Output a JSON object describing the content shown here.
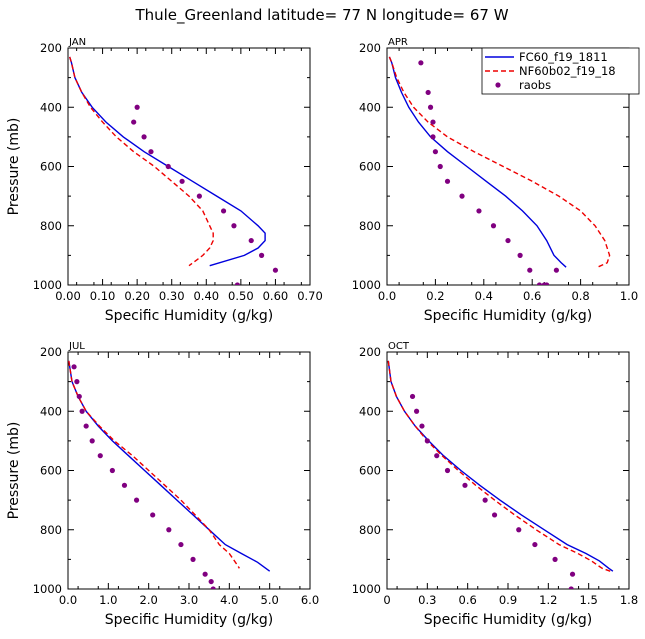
{
  "title": "Thule_Greenland  latitude= 77 N longitude= 67 W",
  "legend": {
    "entries": [
      {
        "name": "FC60_f19_1811",
        "color": "#0000dd",
        "style": "solid"
      },
      {
        "name": "NF60b02_f19_18",
        "color": "#ee0000",
        "style": "dashed"
      },
      {
        "name": "raobs",
        "color": "#800080",
        "style": "dots"
      }
    ]
  },
  "chart_data": [
    {
      "type": "line",
      "panel": "JAN",
      "xlabel": "Specific Humidity (g/kg)",
      "ylabel": "Pressure (mb)",
      "xlim": [
        0,
        0.7
      ],
      "ylim": [
        1000,
        200
      ],
      "xticks": [
        "0.00",
        "0.10",
        "0.20",
        "0.30",
        "0.40",
        "0.50",
        "0.60",
        "0.70"
      ],
      "yticks": [
        "200",
        "400",
        "600",
        "800",
        "1000"
      ],
      "series": [
        {
          "name": "FC60_f19_1811",
          "x": [
            0.005,
            0.01,
            0.02,
            0.04,
            0.07,
            0.11,
            0.16,
            0.22,
            0.29,
            0.36,
            0.43,
            0.5,
            0.55,
            0.57,
            0.57,
            0.55,
            0.51,
            0.41
          ],
          "y": [
            230,
            250,
            300,
            350,
            400,
            450,
            500,
            550,
            600,
            650,
            700,
            750,
            800,
            825,
            850,
            875,
            900,
            935
          ]
        },
        {
          "name": "NF60b02_f19_18",
          "x": [
            0.005,
            0.01,
            0.02,
            0.04,
            0.065,
            0.1,
            0.14,
            0.19,
            0.25,
            0.3,
            0.35,
            0.39,
            0.41,
            0.42,
            0.42,
            0.41,
            0.39,
            0.35
          ],
          "y": [
            230,
            250,
            300,
            350,
            400,
            450,
            500,
            550,
            600,
            650,
            700,
            750,
            800,
            825,
            850,
            875,
            900,
            935
          ]
        },
        {
          "name": "raobs",
          "x": [
            0.2,
            0.19,
            0.22,
            0.24,
            0.29,
            0.33,
            0.38,
            0.45,
            0.48,
            0.53,
            0.56,
            0.6,
            0.49
          ],
          "y": [
            400,
            450,
            500,
            550,
            600,
            650,
            700,
            750,
            800,
            850,
            900,
            950,
            1000
          ]
        }
      ]
    },
    {
      "type": "line",
      "panel": "APR",
      "xlabel": "Specific Humidity (g/kg)",
      "ylabel": "",
      "xlim": [
        0,
        1.0
      ],
      "ylim": [
        1000,
        200
      ],
      "xticks": [
        "0.0",
        "0.2",
        "0.4",
        "0.6",
        "0.8",
        "1.0"
      ],
      "yticks": [
        "200",
        "400",
        "600",
        "800",
        "1000"
      ],
      "series": [
        {
          "name": "FC60_f19_1811",
          "x": [
            0.01,
            0.02,
            0.035,
            0.06,
            0.09,
            0.13,
            0.18,
            0.25,
            0.33,
            0.41,
            0.49,
            0.56,
            0.62,
            0.66,
            0.69,
            0.72,
            0.74
          ],
          "y": [
            230,
            250,
            300,
            350,
            400,
            450,
            500,
            550,
            600,
            650,
            700,
            750,
            800,
            850,
            900,
            925,
            940
          ]
        },
        {
          "name": "NF60b02_f19_18",
          "x": [
            0.01,
            0.02,
            0.04,
            0.07,
            0.11,
            0.17,
            0.25,
            0.36,
            0.48,
            0.6,
            0.71,
            0.8,
            0.86,
            0.9,
            0.92,
            0.91,
            0.87
          ],
          "y": [
            230,
            250,
            300,
            350,
            400,
            450,
            500,
            550,
            600,
            650,
            700,
            750,
            800,
            850,
            900,
            925,
            940
          ]
        },
        {
          "name": "raobs",
          "x": [
            0.14,
            0.17,
            0.18,
            0.19,
            0.19,
            0.2,
            0.22,
            0.25,
            0.31,
            0.38,
            0.44,
            0.5,
            0.55,
            0.59,
            0.63,
            0.66,
            0.7,
            0.65
          ],
          "y": [
            250,
            350,
            400,
            450,
            500,
            550,
            600,
            650,
            700,
            750,
            800,
            850,
            900,
            950,
            1000,
            1000,
            950,
            1000
          ]
        }
      ]
    },
    {
      "type": "line",
      "panel": "JUL",
      "xlabel": "Specific Humidity (g/kg)",
      "ylabel": "Pressure (mb)",
      "xlim": [
        0,
        6.0
      ],
      "ylim": [
        1000,
        200
      ],
      "xticks": [
        "0.0",
        "1.0",
        "2.0",
        "3.0",
        "4.0",
        "5.0",
        "6.0"
      ],
      "yticks": [
        "200",
        "400",
        "600",
        "800",
        "1000"
      ],
      "series": [
        {
          "name": "FC60_f19_1811",
          "x": [
            0.02,
            0.1,
            0.25,
            0.45,
            0.75,
            1.1,
            1.5,
            1.9,
            2.3,
            2.7,
            3.1,
            3.5,
            3.9,
            4.3,
            4.7,
            5.0
          ],
          "y": [
            230,
            300,
            350,
            400,
            450,
            500,
            550,
            600,
            650,
            700,
            750,
            800,
            850,
            880,
            910,
            940
          ]
        },
        {
          "name": "NF60b02_f19_18",
          "x": [
            0.02,
            0.1,
            0.25,
            0.45,
            0.78,
            1.15,
            1.6,
            2.0,
            2.4,
            2.8,
            3.15,
            3.5,
            3.75,
            4.0,
            4.15,
            4.25
          ],
          "y": [
            230,
            300,
            350,
            400,
            450,
            500,
            550,
            600,
            650,
            700,
            750,
            800,
            850,
            880,
            910,
            930
          ]
        },
        {
          "name": "raobs",
          "x": [
            0.15,
            0.22,
            0.28,
            0.35,
            0.45,
            0.6,
            0.8,
            1.1,
            1.4,
            1.7,
            2.1,
            2.5,
            2.8,
            3.1,
            3.4,
            3.55,
            3.6
          ],
          "y": [
            250,
            300,
            350,
            400,
            450,
            500,
            550,
            600,
            650,
            700,
            750,
            800,
            850,
            900,
            950,
            975,
            1000
          ]
        }
      ]
    },
    {
      "type": "line",
      "panel": "OCT",
      "xlabel": "Specific Humidity (g/kg)",
      "ylabel": "",
      "xlim": [
        0,
        1.8
      ],
      "ylim": [
        1000,
        200
      ],
      "xticks": [
        "0",
        "0.3",
        "0.6",
        "0.9",
        "1.2",
        "1.5",
        "1.8"
      ],
      "yticks": [
        "200",
        "400",
        "600",
        "800",
        "1000"
      ],
      "series": [
        {
          "name": "FC60_f19_1811",
          "x": [
            0.01,
            0.03,
            0.07,
            0.13,
            0.21,
            0.31,
            0.42,
            0.55,
            0.69,
            0.84,
            1.0,
            1.17,
            1.34,
            1.48,
            1.58,
            1.65,
            1.68
          ],
          "y": [
            230,
            300,
            350,
            400,
            450,
            500,
            550,
            600,
            650,
            700,
            750,
            800,
            850,
            880,
            905,
            930,
            940
          ]
        },
        {
          "name": "NF60b02_f19_18",
          "x": [
            0.01,
            0.03,
            0.07,
            0.13,
            0.21,
            0.3,
            0.41,
            0.53,
            0.66,
            0.8,
            0.95,
            1.11,
            1.28,
            1.42,
            1.52,
            1.6,
            1.66
          ],
          "y": [
            230,
            300,
            350,
            400,
            450,
            500,
            550,
            600,
            650,
            700,
            750,
            800,
            850,
            880,
            905,
            930,
            940
          ]
        },
        {
          "name": "raobs",
          "x": [
            0.19,
            0.22,
            0.26,
            0.3,
            0.37,
            0.45,
            0.58,
            0.73,
            0.8,
            0.98,
            1.1,
            1.25,
            1.38,
            1.37
          ],
          "y": [
            350,
            400,
            450,
            500,
            550,
            600,
            650,
            700,
            750,
            800,
            850,
            900,
            950,
            1000
          ]
        }
      ]
    }
  ]
}
